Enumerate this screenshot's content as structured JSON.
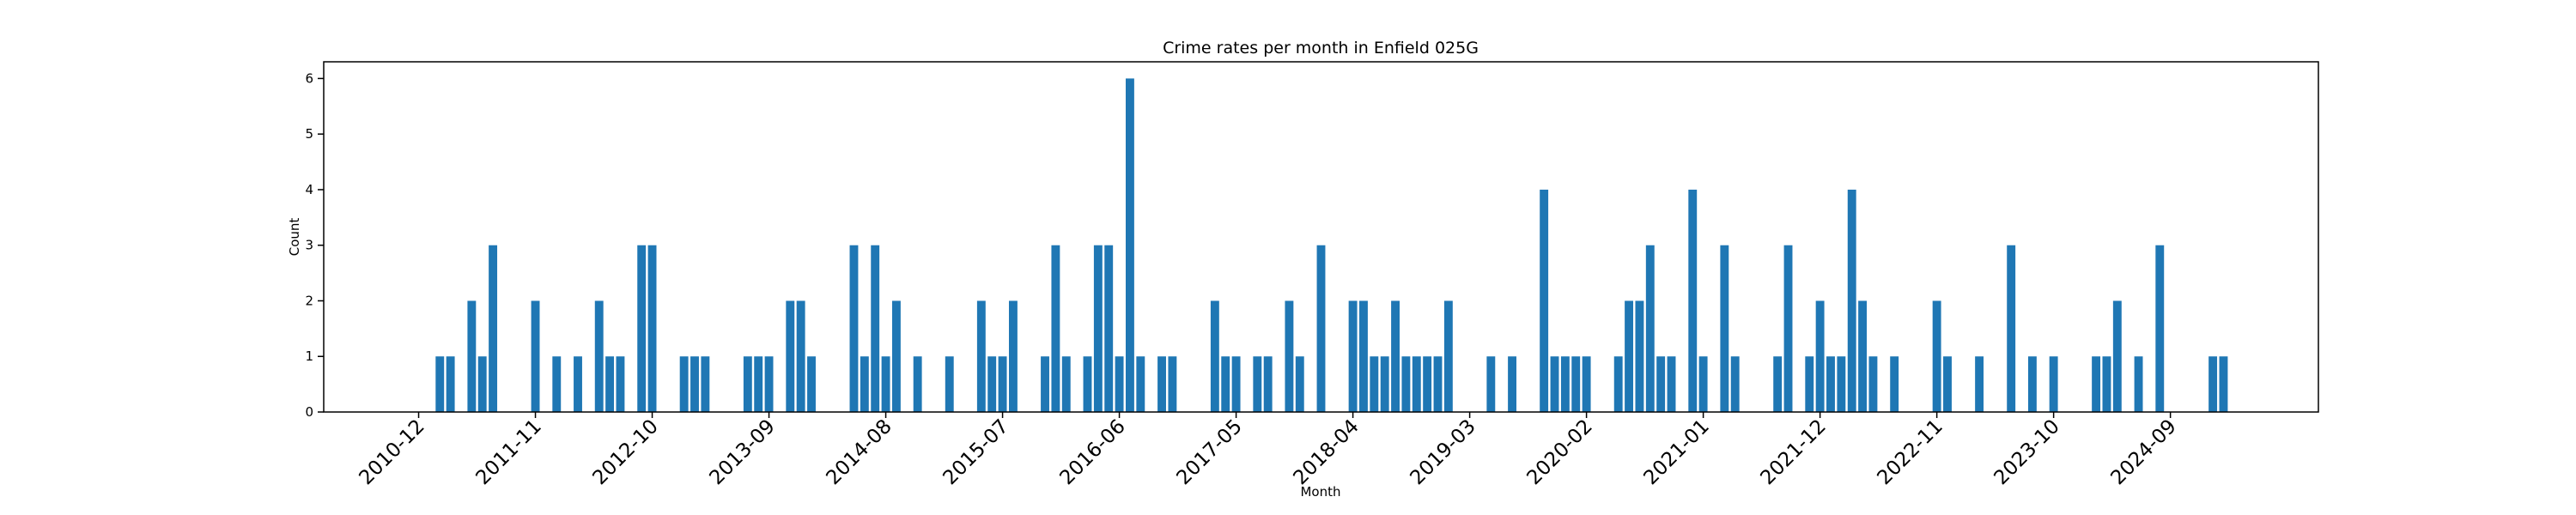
{
  "chart_data": {
    "type": "bar",
    "title": "Crime rates per month in Enfield 025G",
    "x_label": "Month",
    "y_label": "Count",
    "color": "#1f77b4",
    "categories": [
      "2010-12",
      null,
      null,
      null,
      null,
      null,
      null,
      null,
      null,
      null,
      null,
      "2011-11",
      null,
      null,
      null,
      null,
      null,
      null,
      null,
      null,
      null,
      null,
      "2012-10",
      null,
      null,
      null,
      null,
      null,
      null,
      null,
      null,
      null,
      null,
      "2013-09",
      null,
      null,
      null,
      null,
      null,
      null,
      null,
      null,
      null,
      null,
      "2014-08",
      null,
      null,
      null,
      null,
      null,
      null,
      null,
      null,
      null,
      null,
      "2015-07",
      null,
      null,
      null,
      null,
      null,
      null,
      null,
      null,
      null,
      null,
      "2016-06",
      null,
      null,
      null,
      null,
      null,
      null,
      null,
      null,
      null,
      null,
      "2017-05",
      null,
      null,
      null,
      null,
      null,
      null,
      null,
      null,
      null,
      null,
      "2018-04",
      null,
      null,
      null,
      null,
      null,
      null,
      null,
      null,
      null,
      null,
      "2019-03",
      null,
      null,
      null,
      null,
      null,
      null,
      null,
      null,
      null,
      null,
      "2020-02",
      null,
      null,
      null,
      null,
      null,
      null,
      null,
      null,
      null,
      null,
      "2021-01",
      null,
      null,
      null,
      null,
      null,
      null,
      null,
      null,
      null,
      null,
      "2021-12",
      null,
      null,
      null,
      null,
      null,
      null,
      null,
      null,
      null,
      null,
      "2022-11",
      null,
      null,
      null,
      null,
      null,
      null,
      null,
      null,
      null,
      null,
      "2023-10",
      null,
      null,
      null,
      null,
      null,
      null,
      null,
      null,
      null,
      null,
      "2024-09",
      null,
      null,
      null,
      null,
      null
    ],
    "values": [
      0,
      0,
      1,
      1,
      0,
      2,
      1,
      3,
      0,
      0,
      0,
      2,
      0,
      1,
      0,
      1,
      0,
      2,
      1,
      1,
      0,
      3,
      3,
      0,
      0,
      1,
      1,
      1,
      0,
      0,
      0,
      1,
      1,
      1,
      0,
      2,
      2,
      1,
      0,
      0,
      0,
      3,
      1,
      3,
      1,
      2,
      0,
      1,
      0,
      0,
      1,
      0,
      0,
      2,
      1,
      1,
      2,
      0,
      0,
      1,
      3,
      1,
      0,
      1,
      3,
      3,
      1,
      6,
      1,
      0,
      1,
      1,
      0,
      0,
      0,
      2,
      1,
      1,
      0,
      1,
      1,
      0,
      2,
      1,
      0,
      3,
      0,
      0,
      2,
      2,
      1,
      1,
      2,
      1,
      1,
      1,
      1,
      2,
      0,
      0,
      0,
      1,
      0,
      1,
      0,
      0,
      4,
      1,
      1,
      1,
      1,
      0,
      0,
      1,
      2,
      2,
      3,
      1,
      1,
      0,
      4,
      1,
      0,
      3,
      1,
      0,
      0,
      0,
      1,
      3,
      0,
      1,
      2,
      1,
      1,
      4,
      2,
      1,
      0,
      1,
      0,
      0,
      0,
      2,
      1,
      0,
      0,
      1,
      0,
      0,
      3,
      0,
      1,
      0,
      1,
      0,
      0,
      0,
      1,
      1,
      2,
      0,
      1,
      0,
      3,
      0,
      0,
      0,
      0,
      1,
      1
    ],
    "ylim": [
      0,
      6.3
    ],
    "yticks": [
      0,
      1,
      2,
      3,
      4,
      5,
      6
    ]
  }
}
